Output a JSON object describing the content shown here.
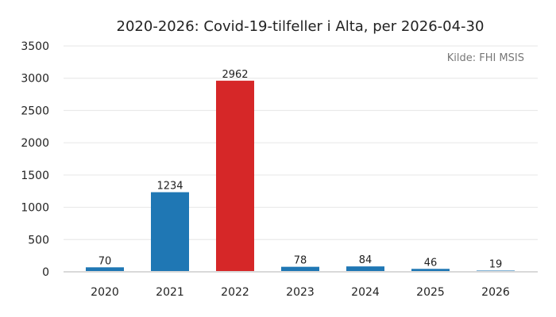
{
  "chart_data": {
    "type": "bar",
    "title": "2020-2026: Covid-19-tilfeller i Alta, per 2026-04-30",
    "source_note": "Kilde: FHI MSIS",
    "categories": [
      "2020",
      "2021",
      "2022",
      "2023",
      "2024",
      "2025",
      "2026"
    ],
    "values": [
      70,
      1234,
      2962,
      78,
      84,
      46,
      19
    ],
    "data_labels": [
      "70",
      "1234",
      "2962",
      "78",
      "84",
      "46",
      "19"
    ],
    "bar_colors": [
      "#1f77b4",
      "#1f77b4",
      "#d62728",
      "#1f77b4",
      "#1f77b4",
      "#1f77b4",
      "#1f77b4"
    ],
    "highlight_color": "#d62728",
    "base_color": "#1f77b4",
    "xlabel": "",
    "ylabel": "",
    "ylim": [
      0,
      3500
    ],
    "yticks": [
      0,
      500,
      1000,
      1500,
      2000,
      2500,
      3000,
      3500
    ],
    "ytick_labels": [
      "0",
      "500",
      "1000",
      "1500",
      "2000",
      "2500",
      "3000",
      "3500"
    ],
    "grid": true,
    "legend": "none"
  }
}
